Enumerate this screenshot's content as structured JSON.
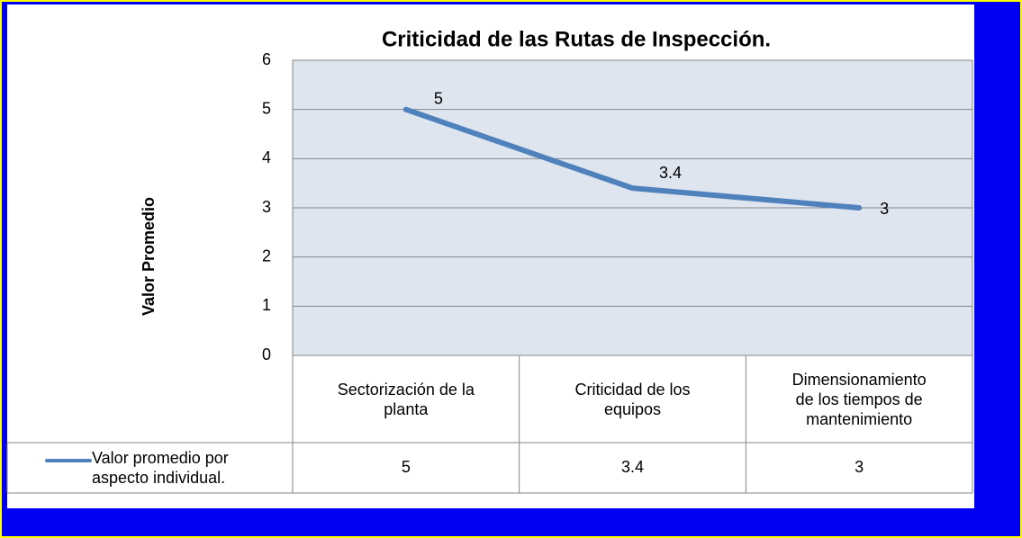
{
  "chart_data": {
    "type": "line",
    "title": "Criticidad de las Rutas de Inspección.",
    "y_label": "Valor Promedio",
    "categories": [
      "Sectorización de la planta",
      "Criticidad de los equipos",
      "Dimensionamiento de los tiempos de mantenimiento"
    ],
    "series": [
      {
        "name": "Valor promedio por aspecto individual.",
        "color": "#4f81bd",
        "values": [
          5,
          3.4,
          3
        ]
      }
    ],
    "ylim": [
      0,
      6
    ],
    "yticks": [
      0,
      1,
      2,
      3,
      4,
      5,
      6
    ],
    "grid": true,
    "data_table": true
  }
}
